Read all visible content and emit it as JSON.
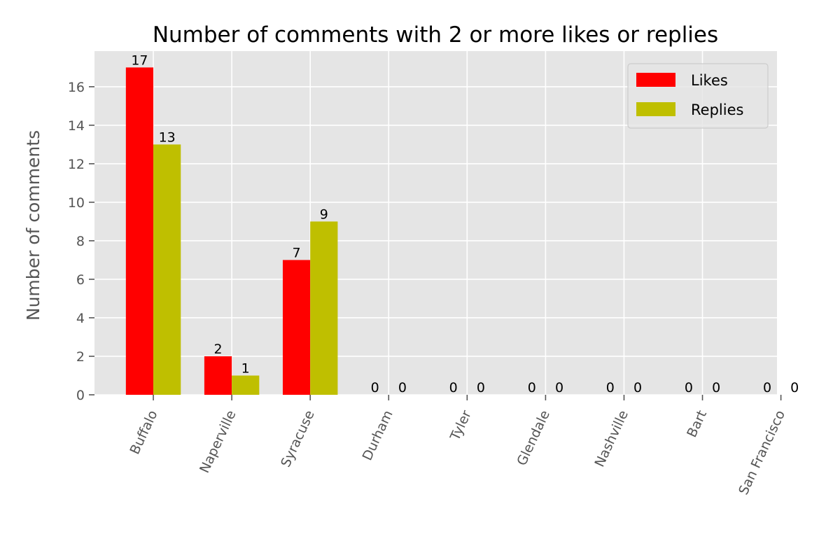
{
  "chart_data": {
    "type": "bar",
    "title": "Number of comments with 2 or more likes or replies",
    "xlabel": "",
    "ylabel": "Number of comments",
    "categories": [
      "Buffalo",
      "Naperville",
      "Syracuse",
      "Durham",
      "Tyler",
      "Glendale",
      "Nashville",
      "Bart",
      "San Francisco"
    ],
    "series": [
      {
        "name": "Likes",
        "color": "#ff0000",
        "values": [
          17,
          2,
          7,
          0,
          0,
          0,
          0,
          0,
          0
        ]
      },
      {
        "name": "Replies",
        "color": "#bfbf00",
        "values": [
          13,
          1,
          9,
          0,
          0,
          0,
          0,
          0,
          0
        ]
      }
    ],
    "ylim": [
      0,
      17.85
    ],
    "yticks": [
      0,
      2,
      4,
      6,
      8,
      10,
      12,
      14,
      16
    ],
    "grid": true,
    "background": "#e5e5e5",
    "legend_position": "top-right",
    "data_labels": true
  }
}
